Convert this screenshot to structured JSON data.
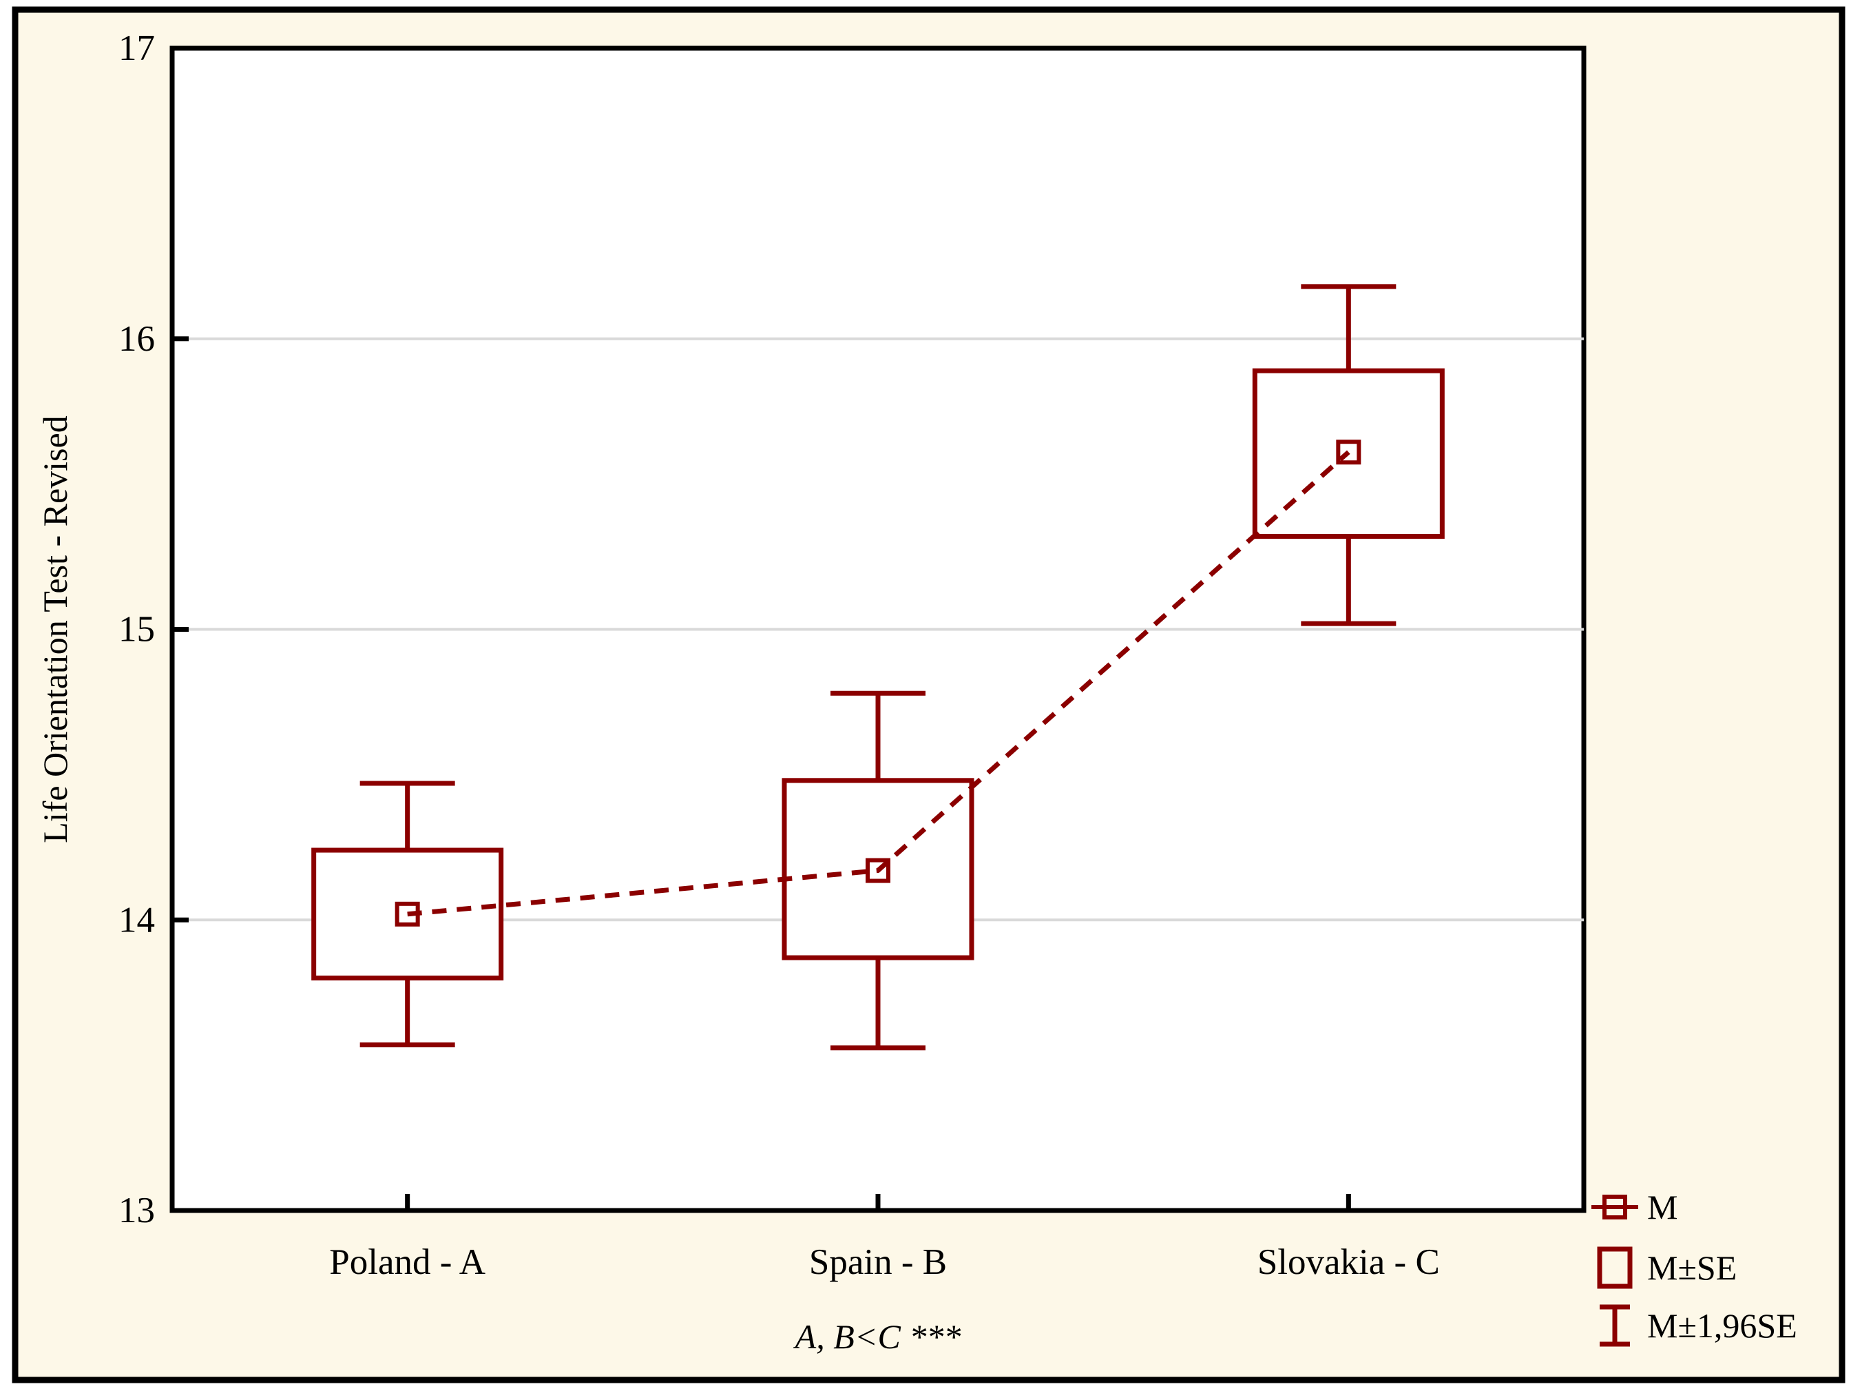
{
  "chart_data": {
    "type": "box",
    "title": "",
    "xlabel": "",
    "ylabel": "Life Orientation Test - Revised",
    "ylim": [
      13,
      17
    ],
    "yticks": [
      13,
      14,
      15,
      16,
      17
    ],
    "gridline_values": [
      14,
      15,
      16
    ],
    "grid": "horizontal",
    "categories": [
      "Poland - A",
      "Spain - B",
      "Slovakia - C"
    ],
    "series": [
      {
        "category": "Poland - A",
        "mean": 14.02,
        "box_low": 13.8,
        "box_high": 14.24,
        "whisker_low": 13.57,
        "whisker_high": 14.47
      },
      {
        "category": "Spain - B",
        "mean": 14.17,
        "box_low": 13.87,
        "box_high": 14.48,
        "whisker_low": 13.56,
        "whisker_high": 14.78
      },
      {
        "category": "Slovakia - C",
        "mean": 15.61,
        "box_low": 15.32,
        "box_high": 15.89,
        "whisker_low": 15.02,
        "whisker_high": 16.18
      }
    ],
    "connector": "dashed-line-through-means",
    "legend_position": "bottom-right",
    "legend": [
      {
        "symbol": "mean-marker",
        "label": "M"
      },
      {
        "symbol": "se-box",
        "label": "M±SE"
      },
      {
        "symbol": "ci-whisker",
        "label": "M±1,96SE"
      }
    ],
    "annotation": "A, B<C ***",
    "colors": {
      "series": "#8B0000",
      "grid": "#D9D9D9",
      "axis": "#000000",
      "canvas_bg": "#FDF8E8",
      "plot_bg": "#FFFFFF",
      "text": "#000000"
    }
  }
}
